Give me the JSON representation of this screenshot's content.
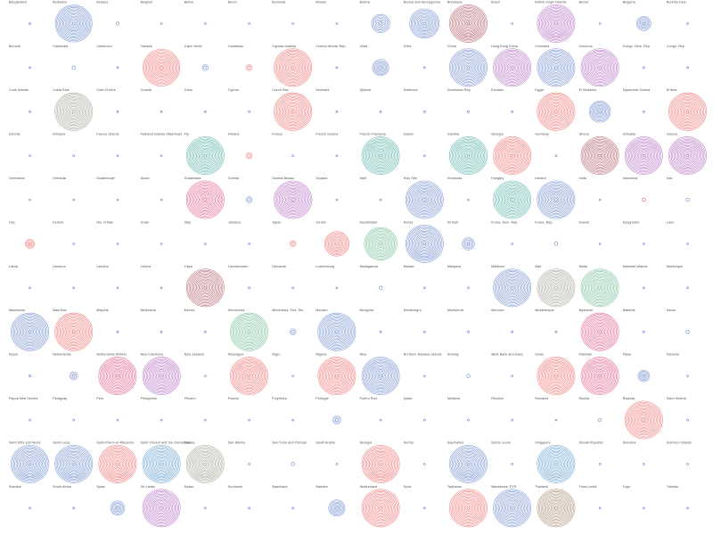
{
  "chart_data": {
    "type": "small-multiples-concentric-circles",
    "title": "",
    "grid": {
      "columns": 16
    },
    "palette": {
      "blue": "#4a6fc0",
      "red": "#ea4a4a",
      "pink": "#d8306a",
      "green": "#4caa78",
      "teal": "#2a9a8a",
      "purple": "#9d47b0",
      "brown": "#8a6a4a",
      "gray": "#8a8a7a",
      "maroon": "#9a3040",
      "cyan": "#3a86c0"
    },
    "cells": [
      {
        "label": "",
        "size": 0.9,
        "color": "brown"
      },
      {
        "label": "",
        "size": 0,
        "color": "blue"
      },
      {
        "label": "",
        "size": 0,
        "color": "blue"
      },
      {
        "label": "",
        "size": 0.9,
        "color": "red"
      },
      {
        "label": "",
        "size": 0,
        "color": "blue"
      },
      {
        "label": "",
        "size": 0.15,
        "color": "blue"
      },
      {
        "label": "",
        "size": 0,
        "color": "blue"
      },
      {
        "label": "",
        "size": 0.4,
        "color": "blue"
      },
      {
        "label": "",
        "size": 0.9,
        "color": "blue"
      },
      {
        "label": "",
        "size": 0,
        "color": "blue"
      },
      {
        "label": "",
        "size": 0,
        "color": "blue"
      },
      {
        "label": "",
        "size": 0.9,
        "color": "blue"
      },
      {
        "label": "",
        "size": 0,
        "color": "blue"
      },
      {
        "label": "",
        "size": 0,
        "color": "blue"
      },
      {
        "label": "",
        "size": 0.1,
        "color": "pink"
      },
      {
        "label": "",
        "size": 0.1,
        "color": "blue"
      },
      {
        "label": "Bangladesh",
        "size": 0.05,
        "color": "blue"
      },
      {
        "label": "Barbados",
        "size": 0.9,
        "color": "blue"
      },
      {
        "label": "Belarus",
        "size": 0.08,
        "color": "brown"
      },
      {
        "label": "Belgium",
        "size": 0,
        "color": "blue"
      },
      {
        "label": "Belize",
        "size": 0,
        "color": "blue"
      },
      {
        "label": "Benin",
        "size": 0,
        "color": "blue"
      },
      {
        "label": "Bermuda",
        "size": 0,
        "color": "blue"
      },
      {
        "label": "Bhutan",
        "size": 0,
        "color": "blue"
      },
      {
        "label": "Bolivia",
        "size": 0.45,
        "color": "blue"
      },
      {
        "label": "Bosnia and Herzegovina",
        "size": 0.72,
        "color": "blue"
      },
      {
        "label": "Botswana",
        "size": 0.92,
        "color": "maroon"
      },
      {
        "label": "Brazil",
        "size": 0,
        "color": "blue"
      },
      {
        "label": "British Virgin Islands",
        "size": 0.92,
        "color": "purple"
      },
      {
        "label": "Brunei",
        "size": 0,
        "color": "blue"
      },
      {
        "label": "Bulgaria",
        "size": 0.35,
        "color": "blue"
      },
      {
        "label": "Burkina Faso",
        "size": 0,
        "color": "blue"
      },
      {
        "label": "Burundi",
        "size": 0,
        "color": "blue"
      },
      {
        "label": "Cambodia",
        "size": 0.08,
        "color": "blue"
      },
      {
        "label": "Cameroon",
        "size": 0,
        "color": "blue"
      },
      {
        "label": "Canada",
        "size": 0.9,
        "color": "red"
      },
      {
        "label": "Cape Verde",
        "size": 0.15,
        "color": "blue"
      },
      {
        "label": "Caribbean",
        "size": 0.15,
        "color": "red"
      },
      {
        "label": "Cayman Islands",
        "size": 0.92,
        "color": "red"
      },
      {
        "label": "Central African Rep.",
        "size": 0,
        "color": "blue"
      },
      {
        "label": "Chad",
        "size": 0.4,
        "color": "blue"
      },
      {
        "label": "Chile",
        "size": 0,
        "color": "blue"
      },
      {
        "label": "China",
        "size": 0.92,
        "color": "blue"
      },
      {
        "label": "Hong Kong China",
        "size": 0.92,
        "color": "purple"
      },
      {
        "label": "Colombia",
        "size": 0.92,
        "color": "blue"
      },
      {
        "label": "Comoros",
        "size": 0.92,
        "color": "purple"
      },
      {
        "label": "Congo, Dem. Rep.",
        "size": 0,
        "color": "blue"
      },
      {
        "label": "Congo, Rep.",
        "size": 0,
        "color": "blue"
      },
      {
        "label": "Cook Islands",
        "size": 0,
        "color": "blue"
      },
      {
        "label": "Costa Rica",
        "size": 0.92,
        "color": "gray"
      },
      {
        "label": "Cote d'Ivoire",
        "size": 0,
        "color": "blue"
      },
      {
        "label": "Croatia",
        "size": 0,
        "color": "blue"
      },
      {
        "label": "Cuba",
        "size": 0.03,
        "color": "blue"
      },
      {
        "label": "Cyprus",
        "size": 0,
        "color": "blue"
      },
      {
        "label": "Czech Rep.",
        "size": 0.92,
        "color": "red"
      },
      {
        "label": "Denmark",
        "size": 0,
        "color": "blue"
      },
      {
        "label": "Djibouti",
        "size": 0,
        "color": "blue"
      },
      {
        "label": "Dominica",
        "size": 0,
        "color": "blue"
      },
      {
        "label": "Dominican Rep.",
        "size": 0.05,
        "color": "blue"
      },
      {
        "label": "Ecuador",
        "size": 0,
        "color": "blue"
      },
      {
        "label": "Egypt",
        "size": 0.92,
        "color": "red"
      },
      {
        "label": "El Salvador",
        "size": 0.52,
        "color": "blue"
      },
      {
        "label": "Equatorial Guinea",
        "size": 0,
        "color": "blue"
      },
      {
        "label": "Eritrea",
        "size": 0.92,
        "color": "red"
      },
      {
        "label": "Estonia",
        "size": 0,
        "color": "blue"
      },
      {
        "label": "Ethiopia",
        "size": 0,
        "color": "blue"
      },
      {
        "label": "Faeroe Islands",
        "size": 0,
        "color": "blue"
      },
      {
        "label": "Falkland Islands (Malvinas)",
        "size": 0,
        "color": "blue"
      },
      {
        "label": "Fiji",
        "size": 0.92,
        "color": "teal"
      },
      {
        "label": "Finland",
        "size": 0.15,
        "color": "red"
      },
      {
        "label": "France",
        "size": 0,
        "color": "blue"
      },
      {
        "label": "French Guiana",
        "size": 0,
        "color": "blue"
      },
      {
        "label": "French Polynesia",
        "size": 0.92,
        "color": "teal"
      },
      {
        "label": "Gabon",
        "size": 0,
        "color": "blue"
      },
      {
        "label": "Gambia",
        "size": 0.92,
        "color": "teal"
      },
      {
        "label": "Georgia",
        "size": 0.92,
        "color": "red"
      },
      {
        "label": "Germany",
        "size": 0,
        "color": "blue"
      },
      {
        "label": "Ghana",
        "size": 0.92,
        "color": "maroon"
      },
      {
        "label": "Gibraltar",
        "size": 0.92,
        "color": "purple"
      },
      {
        "label": "Greece",
        "size": 0.92,
        "color": "purple"
      },
      {
        "label": "Greenland",
        "size": 0,
        "color": "blue"
      },
      {
        "label": "Grenada",
        "size": 0,
        "color": "blue"
      },
      {
        "label": "Guadeloupe",
        "size": 0,
        "color": "blue"
      },
      {
        "label": "Guam",
        "size": 0,
        "color": "blue"
      },
      {
        "label": "Guatemala",
        "size": 0.92,
        "color": "pink"
      },
      {
        "label": "Guinea",
        "size": 0.15,
        "color": "blue"
      },
      {
        "label": "Guinea-Bissau",
        "size": 0.92,
        "color": "purple"
      },
      {
        "label": "Guyana",
        "size": 0,
        "color": "blue"
      },
      {
        "label": "Haiti",
        "size": 0,
        "color": "blue"
      },
      {
        "label": "Holy See",
        "size": 0.92,
        "color": "blue"
      },
      {
        "label": "Honduras",
        "size": 0,
        "color": "blue"
      },
      {
        "label": "Hungary",
        "size": 0.92,
        "color": "teal"
      },
      {
        "label": "Iceland",
        "size": 0.92,
        "color": "blue"
      },
      {
        "label": "India",
        "size": 0,
        "color": "blue"
      },
      {
        "label": "Indonesia",
        "size": 0.08,
        "color": "pink"
      },
      {
        "label": "Iran",
        "size": 0.08,
        "color": "blue"
      },
      {
        "label": "Iraq",
        "size": 0.22,
        "color": "red"
      },
      {
        "label": "Ireland",
        "size": 0,
        "color": "blue"
      },
      {
        "label": "Isle of Man",
        "size": 0.04,
        "color": "blue"
      },
      {
        "label": "Israel",
        "size": 0,
        "color": "blue"
      },
      {
        "label": "Italy",
        "size": 0,
        "color": "blue"
      },
      {
        "label": "Jamaica",
        "size": 0,
        "color": "blue"
      },
      {
        "label": "Japan",
        "size": 0.15,
        "color": "red"
      },
      {
        "label": "Jordan",
        "size": 0.6,
        "color": "red"
      },
      {
        "label": "Kazakhstan",
        "size": 0.8,
        "color": "green"
      },
      {
        "label": "Kenya",
        "size": 0.92,
        "color": "blue"
      },
      {
        "label": "Kiribati",
        "size": 0.3,
        "color": "blue"
      },
      {
        "label": "Korea, Dem. Rep.",
        "size": 0,
        "color": "blue"
      },
      {
        "label": "Korea, Rep.",
        "size": 0.08,
        "color": "blue"
      },
      {
        "label": "Kuwait",
        "size": 0,
        "color": "blue"
      },
      {
        "label": "Kyrgyzstan",
        "size": 0,
        "color": "blue"
      },
      {
        "label": "Laos",
        "size": 0,
        "color": "blue"
      },
      {
        "label": "Latvia",
        "size": 0.03,
        "color": "blue"
      },
      {
        "label": "Lebanon",
        "size": 0,
        "color": "blue"
      },
      {
        "label": "Lesotho",
        "size": 0,
        "color": "blue"
      },
      {
        "label": "Liberia",
        "size": 0,
        "color": "blue"
      },
      {
        "label": "Libya",
        "size": 0.92,
        "color": "maroon"
      },
      {
        "label": "Liechtenstein",
        "size": 0,
        "color": "blue"
      },
      {
        "label": "Lithuania",
        "size": 0,
        "color": "blue"
      },
      {
        "label": "Luxembourg",
        "size": 0,
        "color": "blue"
      },
      {
        "label": "Madagascar",
        "size": 0.08,
        "color": "blue"
      },
      {
        "label": "Malawi",
        "size": 0,
        "color": "blue"
      },
      {
        "label": "Malaysia",
        "size": 0,
        "color": "blue"
      },
      {
        "label": "Maldives",
        "size": 0.92,
        "color": "blue"
      },
      {
        "label": "Mali",
        "size": 0.92,
        "color": "gray"
      },
      {
        "label": "Malta",
        "size": 0.92,
        "color": "green"
      },
      {
        "label": "Marshall Islands",
        "size": 0,
        "color": "blue"
      },
      {
        "label": "Martinique",
        "size": 0,
        "color": "blue"
      },
      {
        "label": "Mauritania",
        "size": 0.92,
        "color": "blue"
      },
      {
        "label": "Mauritius",
        "size": 0.92,
        "color": "red"
      },
      {
        "label": "Mayotte",
        "size": 0,
        "color": "blue"
      },
      {
        "label": "Melanesia",
        "size": 0,
        "color": "blue"
      },
      {
        "label": "Mexico",
        "size": 0,
        "color": "blue"
      },
      {
        "label": "Micronesia",
        "size": 0.92,
        "color": "green"
      },
      {
        "label": "Micronesia, Fed. Sts.",
        "size": 0.15,
        "color": "blue"
      },
      {
        "label": "Monaco",
        "size": 0.92,
        "color": "blue"
      },
      {
        "label": "Mongolia",
        "size": 0,
        "color": "blue"
      },
      {
        "label": "Montenegro",
        "size": 0,
        "color": "blue"
      },
      {
        "label": "Montserrat",
        "size": 0,
        "color": "blue"
      },
      {
        "label": "Morocco",
        "size": 0,
        "color": "blue"
      },
      {
        "label": "Mozambique",
        "size": 0,
        "color": "blue"
      },
      {
        "label": "Myanmar",
        "size": 0.92,
        "color": "pink"
      },
      {
        "label": "Namibia",
        "size": 0,
        "color": "blue"
      },
      {
        "label": "Nauru",
        "size": 0.08,
        "color": "blue"
      },
      {
        "label": "Nepal",
        "size": 0.05,
        "color": "blue"
      },
      {
        "label": "Netherlands",
        "size": 0.2,
        "color": "blue"
      },
      {
        "label": "Netherlands Antilles",
        "size": 0.92,
        "color": "pink"
      },
      {
        "label": "New Caledonia",
        "size": 0.92,
        "color": "purple"
      },
      {
        "label": "New Zealand",
        "size": 0,
        "color": "blue"
      },
      {
        "label": "Nicaragua",
        "size": 0.92,
        "color": "red"
      },
      {
        "label": "Niger",
        "size": 0,
        "color": "blue"
      },
      {
        "label": "Nigeria",
        "size": 0.92,
        "color": "red"
      },
      {
        "label": "Niue",
        "size": 0.92,
        "color": "blue"
      },
      {
        "label": "Northern Mariana Islands",
        "size": 0,
        "color": "blue"
      },
      {
        "label": "Norway",
        "size": 0.08,
        "color": "blue"
      },
      {
        "label": "West Bank and Gaza",
        "size": 0,
        "color": "blue"
      },
      {
        "label": "Oman",
        "size": 0.92,
        "color": "red"
      },
      {
        "label": "Pakistan",
        "size": 0.92,
        "color": "pink"
      },
      {
        "label": "Palau",
        "size": 0.28,
        "color": "blue"
      },
      {
        "label": "Panama",
        "size": 0,
        "color": "blue"
      },
      {
        "label": "Papua New Guinea",
        "size": 0,
        "color": "blue"
      },
      {
        "label": "Paraguay",
        "size": 0,
        "color": "blue"
      },
      {
        "label": "Peru",
        "size": 0,
        "color": "blue"
      },
      {
        "label": "Philippines",
        "size": 0,
        "color": "blue"
      },
      {
        "label": "Pitcairn",
        "size": 0,
        "color": "blue"
      },
      {
        "label": "Poland",
        "size": 0,
        "color": "blue"
      },
      {
        "label": "Polynesia",
        "size": 0,
        "color": "blue"
      },
      {
        "label": "Portugal",
        "size": 0.2,
        "color": "blue"
      },
      {
        "label": "Puerto Rico",
        "size": 0.04,
        "color": "blue"
      },
      {
        "label": "Qatar",
        "size": 0,
        "color": "blue"
      },
      {
        "label": "Moldova",
        "size": 0,
        "color": "blue"
      },
      {
        "label": "Réunion",
        "size": 0.03,
        "color": "blue"
      },
      {
        "label": "Romania",
        "size": 0,
        "color": "blue"
      },
      {
        "label": "Russia",
        "size": 0.08,
        "color": "blue"
      },
      {
        "label": "Rwanda",
        "size": 0.92,
        "color": "red"
      },
      {
        "label": "Saint Helena",
        "size": 0,
        "color": "blue"
      },
      {
        "label": "Saint Kitts and Nevis",
        "size": 0.92,
        "color": "blue"
      },
      {
        "label": "Saint Lucia",
        "size": 0.92,
        "color": "blue"
      },
      {
        "label": "Saint-Pierre-et-Miquelon",
        "size": 0.92,
        "color": "red"
      },
      {
        "label": "Saint Vincent and the Grenadines",
        "size": 0.92,
        "color": "cyan"
      },
      {
        "label": "Samoa",
        "size": 0.92,
        "color": "gray"
      },
      {
        "label": "San Marino",
        "size": 0,
        "color": "blue"
      },
      {
        "label": "Sao Tome and Principe",
        "size": 0.08,
        "color": "blue"
      },
      {
        "label": "Saudi Arabia",
        "size": 0,
        "color": "blue"
      },
      {
        "label": "Senegal",
        "size": 0.92,
        "color": "red"
      },
      {
        "label": "Serbia",
        "size": 0,
        "color": "blue"
      },
      {
        "label": "Seychelles",
        "size": 0.92,
        "color": "blue"
      },
      {
        "label": "Sierra Leone",
        "size": 0,
        "color": "blue"
      },
      {
        "label": "Singapore",
        "size": 0.92,
        "color": "cyan"
      },
      {
        "label": "Slovak Republic",
        "size": 0,
        "color": "blue"
      },
      {
        "label": "Slovenia",
        "size": 0.04,
        "color": "blue"
      },
      {
        "label": "Solomon Islands",
        "size": 0,
        "color": "blue"
      },
      {
        "label": "Somalia",
        "size": 0,
        "color": "blue"
      },
      {
        "label": "South Africa",
        "size": 0,
        "color": "blue"
      },
      {
        "label": "Spain",
        "size": 0.35,
        "color": "blue"
      },
      {
        "label": "Sri Lanka",
        "size": 0.92,
        "color": "purple"
      },
      {
        "label": "Sudan",
        "size": 0,
        "color": "blue"
      },
      {
        "label": "Suriname",
        "size": 0,
        "color": "blue"
      },
      {
        "label": "Swaziland",
        "size": 0,
        "color": "blue"
      },
      {
        "label": "Sweden",
        "size": 0.4,
        "color": "blue"
      },
      {
        "label": "Switzerland",
        "size": 0.92,
        "color": "red"
      },
      {
        "label": "Syria",
        "size": 0,
        "color": "blue"
      },
      {
        "label": "Tajikistan",
        "size": 0.92,
        "color": "red"
      },
      {
        "label": "Macedonia, FYR",
        "size": 0.92,
        "color": "blue"
      },
      {
        "label": "Thailand",
        "size": 0.92,
        "color": "brown"
      },
      {
        "label": "Timor-Leste",
        "size": 0,
        "color": "blue"
      },
      {
        "label": "Togo",
        "size": 0,
        "color": "blue"
      },
      {
        "label": "Tokelau",
        "size": 0,
        "color": "blue"
      }
    ]
  }
}
